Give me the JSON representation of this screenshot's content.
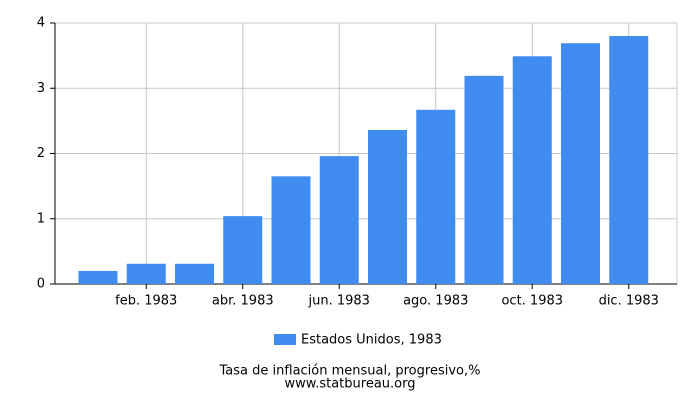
{
  "chart_data": {
    "type": "bar",
    "categories": [
      null,
      "feb. 1983",
      null,
      "abr. 1983",
      null,
      "jun. 1983",
      null,
      "ago. 1983",
      null,
      "oct. 1983",
      null,
      "dic. 1983"
    ],
    "series": [
      {
        "name": "Estados Unidos, 1983",
        "color": "#418cf0",
        "values": [
          0.2,
          0.31,
          0.31,
          1.04,
          1.65,
          1.96,
          2.36,
          2.67,
          3.19,
          3.49,
          3.69,
          3.8
        ]
      }
    ],
    "ylim": [
      0,
      4
    ],
    "yticks": [
      0,
      1,
      2,
      3,
      4
    ],
    "grid": true,
    "subtitle": "Tasa de inflación mensual, progresivo,%",
    "source": "www.statbureau.org"
  }
}
